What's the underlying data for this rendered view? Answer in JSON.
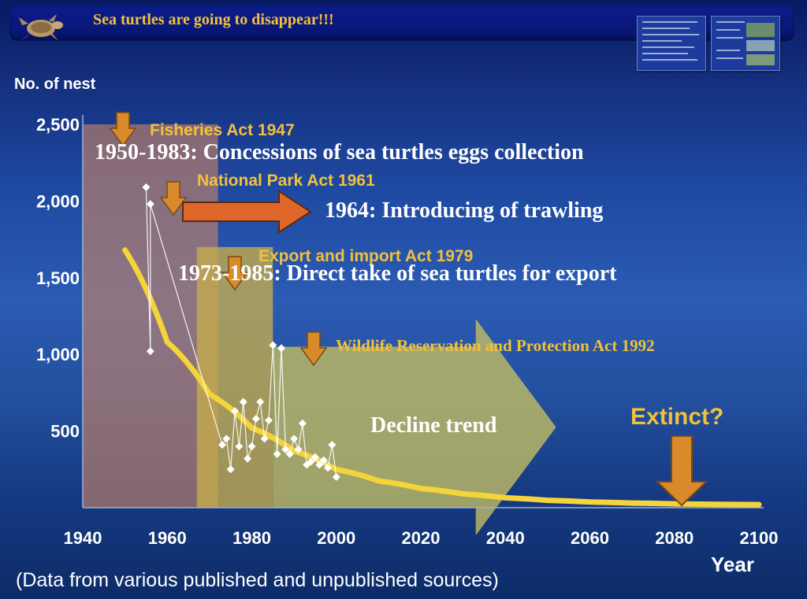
{
  "header": {
    "title": "Sea turtles are going to disappear!!!"
  },
  "y_axis": {
    "label": "No. of nest",
    "ticks": [
      "500",
      "1,000",
      "1,500",
      "2,000",
      "2,500"
    ],
    "tick_values": [
      500,
      1000,
      1500,
      2000,
      2500
    ]
  },
  "x_axis": {
    "label": "Year",
    "ticks": [
      "1940",
      "1960",
      "1980",
      "2000",
      "2020",
      "2040",
      "2060",
      "2080",
      "2100"
    ],
    "tick_values": [
      1940,
      1960,
      1980,
      2000,
      2020,
      2040,
      2060,
      2080,
      2100
    ]
  },
  "footer": {
    "note": "(Data from various published and unpublished sources)"
  },
  "annotations": {
    "fisheries_act": "Fisheries Act 1947",
    "concessions": "1950-1983: Concessions of sea turtles eggs collection",
    "national_park_act": "National Park Act 1961",
    "trawling": "1964: Introducing of trawling",
    "export_import_act": "Export and import Act 1979",
    "direct_take": "1973-1985: Direct take of sea turtles for export",
    "wildlife_act": "Wildlife Reservation and Protection Act 1992",
    "decline_trend": "Decline trend",
    "extinct": "Extinct?"
  },
  "colors": {
    "annotation_yellow": "#f2c13a",
    "arrow_orange": "#d98a2b",
    "trawling_arrow": "#e0672a",
    "trend_curve": "#f5d33a",
    "decline_arrow": "#c6c062"
  },
  "chart_data": {
    "type": "line",
    "title": "",
    "xlabel": "Year",
    "ylabel": "No. of nest",
    "xlim": [
      1940,
      2100
    ],
    "ylim": [
      0,
      2500
    ],
    "series": [
      {
        "x": [
          1955,
          1956,
          1956,
          1973,
          1974,
          1975,
          1976,
          1977,
          1978,
          1979,
          1980,
          1981,
          1982,
          1983,
          1984,
          1985,
          1986,
          1987,
          1988,
          1989,
          1990,
          1991,
          1992,
          1993,
          1994,
          1995,
          1996,
          1997,
          1998,
          1999,
          2000
        ],
        "values": [
          2090,
          1020,
          1980,
          410,
          450,
          250,
          630,
          400,
          690,
          320,
          400,
          580,
          690,
          450,
          570,
          1060,
          350,
          1040,
          380,
          350,
          450,
          380,
          550,
          280,
          300,
          330,
          280,
          310,
          260,
          410,
          200
        ]
      },
      {
        "x": [
          1950,
          1960,
          1970,
          1980,
          1990,
          2000,
          2010,
          2020,
          2030,
          2040,
          2050,
          2060,
          2070,
          2080,
          2090,
          2100
        ],
        "values": [
          1680,
          1080,
          740,
          520,
          370,
          250,
          175,
          125,
          90,
          65,
          48,
          37,
          30,
          25,
          22,
          20
        ]
      }
    ],
    "periods": [
      {
        "start": 1940,
        "end": 1972,
        "ymax": 2500
      },
      {
        "start": 1967,
        "end": 1985,
        "ymax": 1700
      }
    ],
    "grid": false
  }
}
